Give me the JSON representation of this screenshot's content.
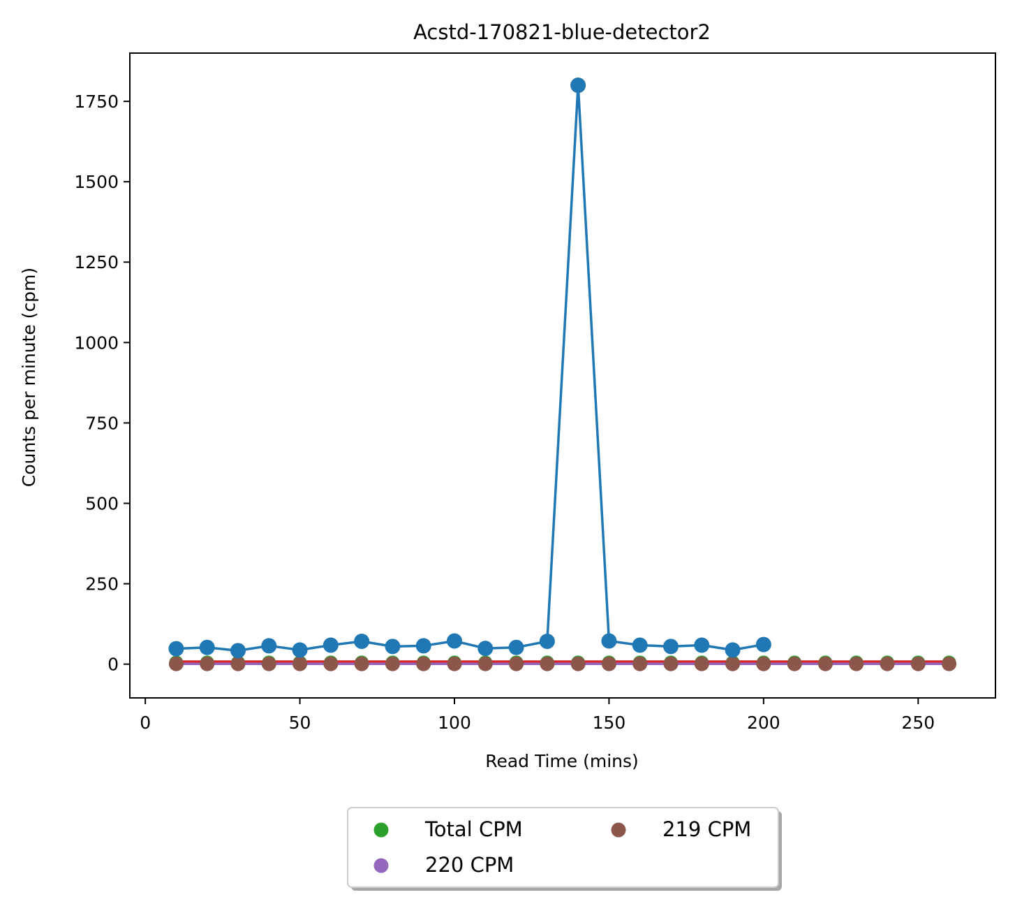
{
  "chart_data": {
    "type": "scatter",
    "title": "Acstd-170821-blue-detector2",
    "xlabel": "Read Time (mins)",
    "ylabel": "Counts per minute (cpm)",
    "xlim": [
      -5,
      275
    ],
    "ylim": [
      -105,
      1900
    ],
    "xticks": [
      0,
      50,
      100,
      150,
      200,
      250
    ],
    "yticks": [
      0,
      250,
      500,
      750,
      1000,
      1250,
      1500,
      1750
    ],
    "grid": false,
    "legend_position": "below plot, centered",
    "series": [
      {
        "key": "blue",
        "style": "line+markers",
        "color": "#1f77b4",
        "x": [
          10,
          20,
          30,
          40,
          50,
          60,
          70,
          80,
          90,
          100,
          110,
          120,
          130,
          140,
          150,
          160,
          170,
          180,
          190,
          200
        ],
        "y": [
          48,
          52,
          42,
          57,
          44,
          59,
          71,
          55,
          57,
          72,
          49,
          52,
          71,
          1800,
          72,
          59,
          55,
          59,
          44,
          61
        ]
      },
      {
        "key": "orange",
        "style": "marker",
        "color": "#ff7f0e",
        "x": [
          140
        ],
        "y": [
          1800
        ]
      },
      {
        "key": "total",
        "name": "Total CPM",
        "style": "line+markers",
        "color": "#2ca02c",
        "x": [
          10,
          20,
          30,
          40,
          50,
          60,
          70,
          80,
          90,
          100,
          110,
          120,
          130,
          140,
          150,
          160,
          170,
          180,
          190,
          200,
          210,
          220,
          230,
          240,
          250,
          260
        ],
        "y": [
          5,
          5,
          5,
          5,
          5,
          5,
          5,
          5,
          5,
          5,
          5,
          5,
          5,
          5,
          5,
          5,
          5,
          5,
          5,
          5,
          5,
          5,
          5,
          5,
          5,
          5
        ]
      },
      {
        "key": "red",
        "style": "line",
        "color": "#d62728",
        "x": [
          10,
          260
        ],
        "y": [
          8,
          8
        ]
      },
      {
        "key": "cpm220",
        "name": "220 CPM",
        "style": "line",
        "color": "#9467bd",
        "x": [
          10,
          260
        ],
        "y": [
          1,
          1
        ]
      },
      {
        "key": "cpm219",
        "name": "219 CPM",
        "style": "markers",
        "color": "#8c564b",
        "x": [
          10,
          20,
          30,
          40,
          50,
          60,
          70,
          80,
          90,
          100,
          110,
          120,
          130,
          140,
          150,
          160,
          170,
          180,
          190,
          200,
          210,
          220,
          230,
          240,
          250,
          260
        ],
        "y": [
          1,
          1,
          1,
          1,
          1,
          1,
          1,
          1,
          1,
          1,
          1,
          1,
          1,
          1,
          1,
          1,
          1,
          1,
          1,
          1,
          1,
          1,
          1,
          1,
          1,
          1
        ]
      }
    ],
    "legend": [
      {
        "label": "Total CPM",
        "color": "#2ca02c"
      },
      {
        "label": "219 CPM",
        "color": "#8c564b"
      },
      {
        "label": "220 CPM",
        "color": "#9467bd"
      }
    ]
  }
}
